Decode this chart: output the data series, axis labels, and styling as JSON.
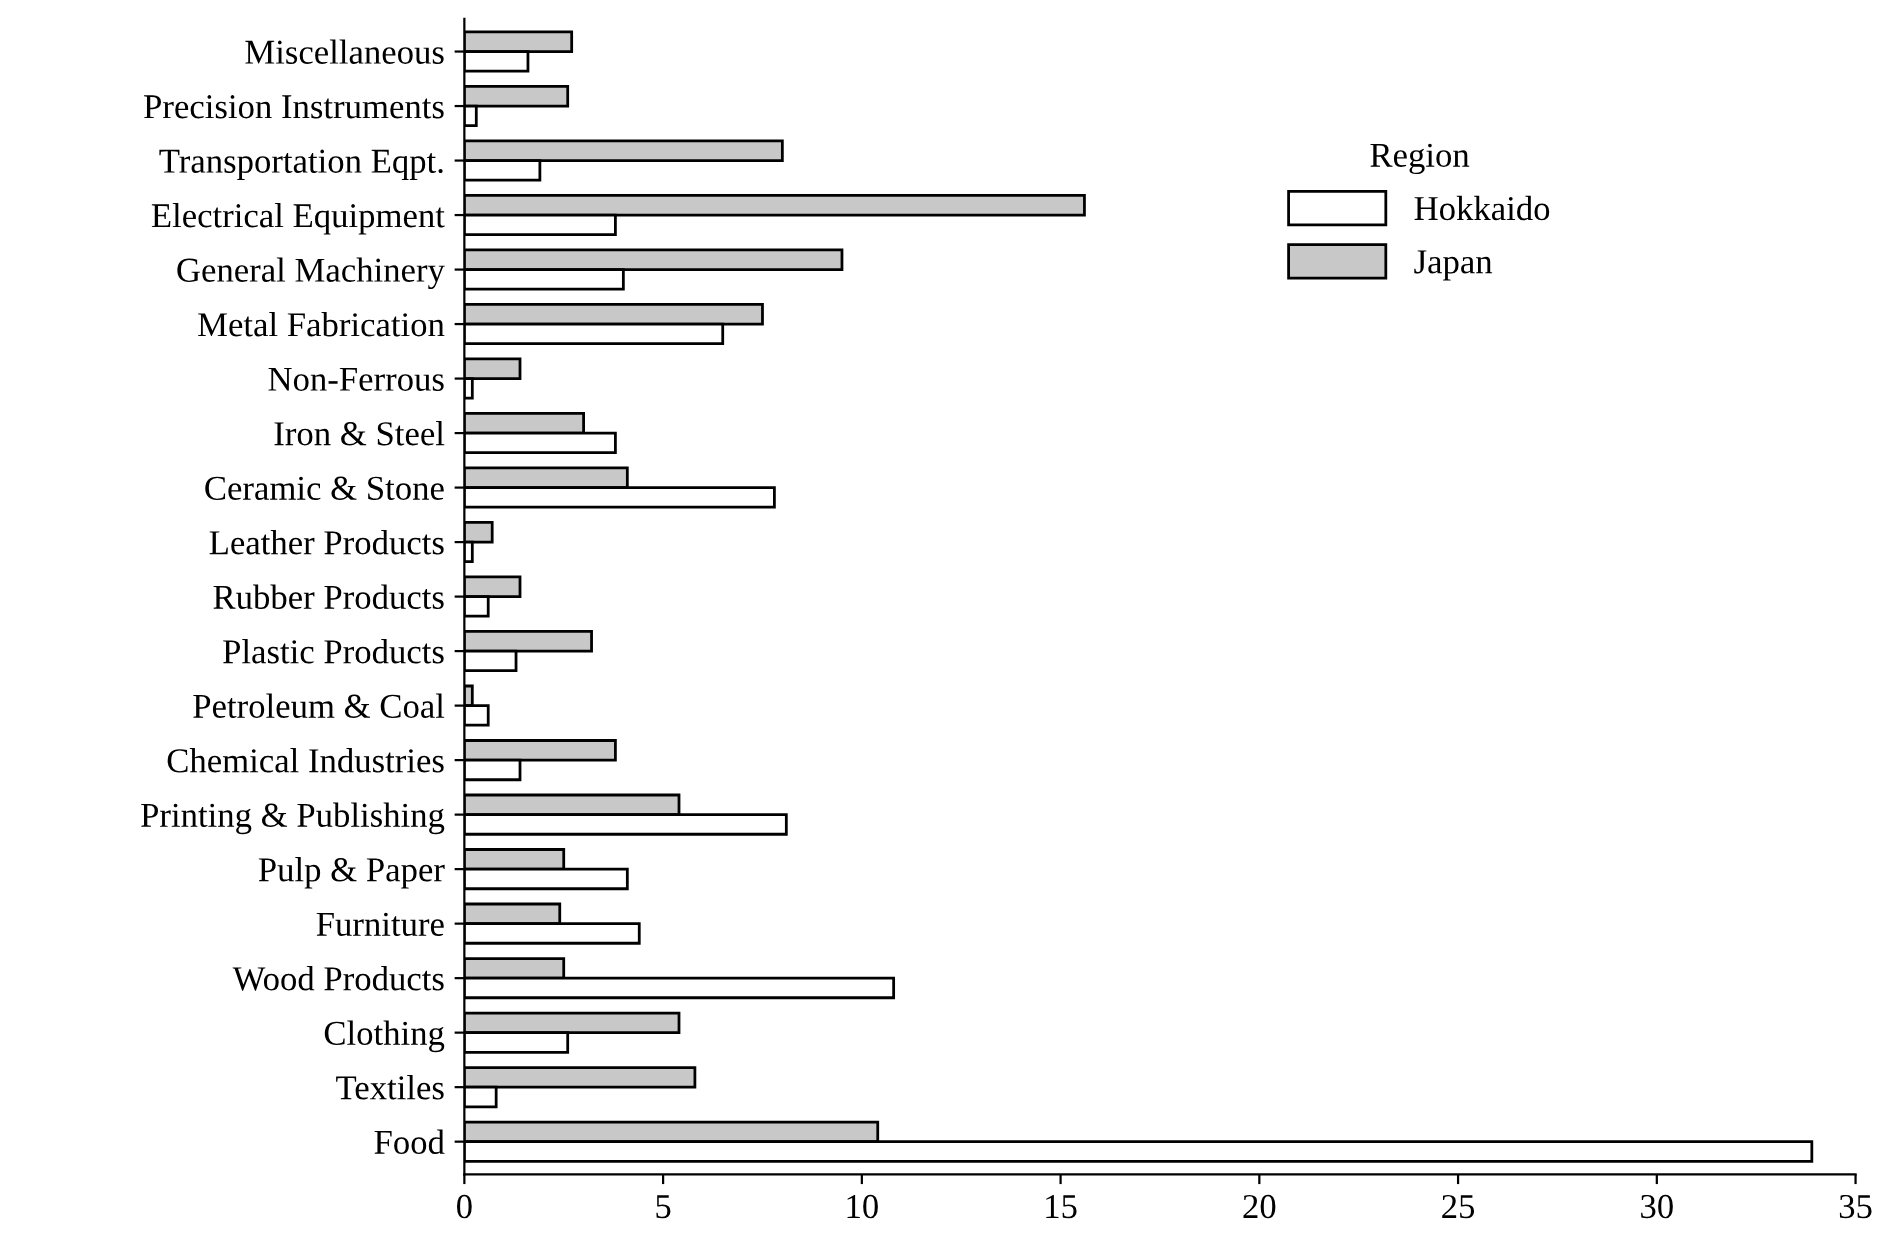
{
  "chart_data": {
    "type": "bar",
    "orientation": "horizontal",
    "categories": [
      "Miscellaneous",
      "Precision Instruments",
      "Transportation Eqpt.",
      "Electrical Equipment",
      "General Machinery",
      "Metal Fabrication",
      "Non-Ferrous",
      "Iron & Steel",
      "Ceramic & Stone",
      "Leather Products",
      "Rubber Products",
      "Plastic Products",
      "Petroleum & Coal",
      "Chemical Industries",
      "Printing & Publishing",
      "Pulp & Paper",
      "Furniture",
      "Wood Products",
      "Clothing",
      "Textiles",
      "Food"
    ],
    "series": [
      {
        "name": "Japan",
        "color": "#c8c8c8",
        "values": [
          2.7,
          2.6,
          8.0,
          15.6,
          9.5,
          7.5,
          1.4,
          3.0,
          4.1,
          0.7,
          1.4,
          3.2,
          0.2,
          3.8,
          5.4,
          2.5,
          2.4,
          2.5,
          5.4,
          5.8,
          10.4
        ]
      },
      {
        "name": "Hokkaido",
        "color": "#ffffff",
        "values": [
          1.6,
          0.3,
          1.9,
          3.8,
          4.0,
          6.5,
          0.2,
          3.8,
          7.8,
          0.2,
          0.6,
          1.3,
          0.6,
          1.4,
          8.1,
          4.1,
          4.4,
          10.8,
          2.6,
          0.8,
          33.9
        ]
      }
    ],
    "xlim": [
      0,
      35
    ],
    "xticks": [
      0,
      5,
      10,
      15,
      20,
      25,
      30,
      35
    ],
    "legend": "top right",
    "legend_title": "Region",
    "grid": false
  }
}
